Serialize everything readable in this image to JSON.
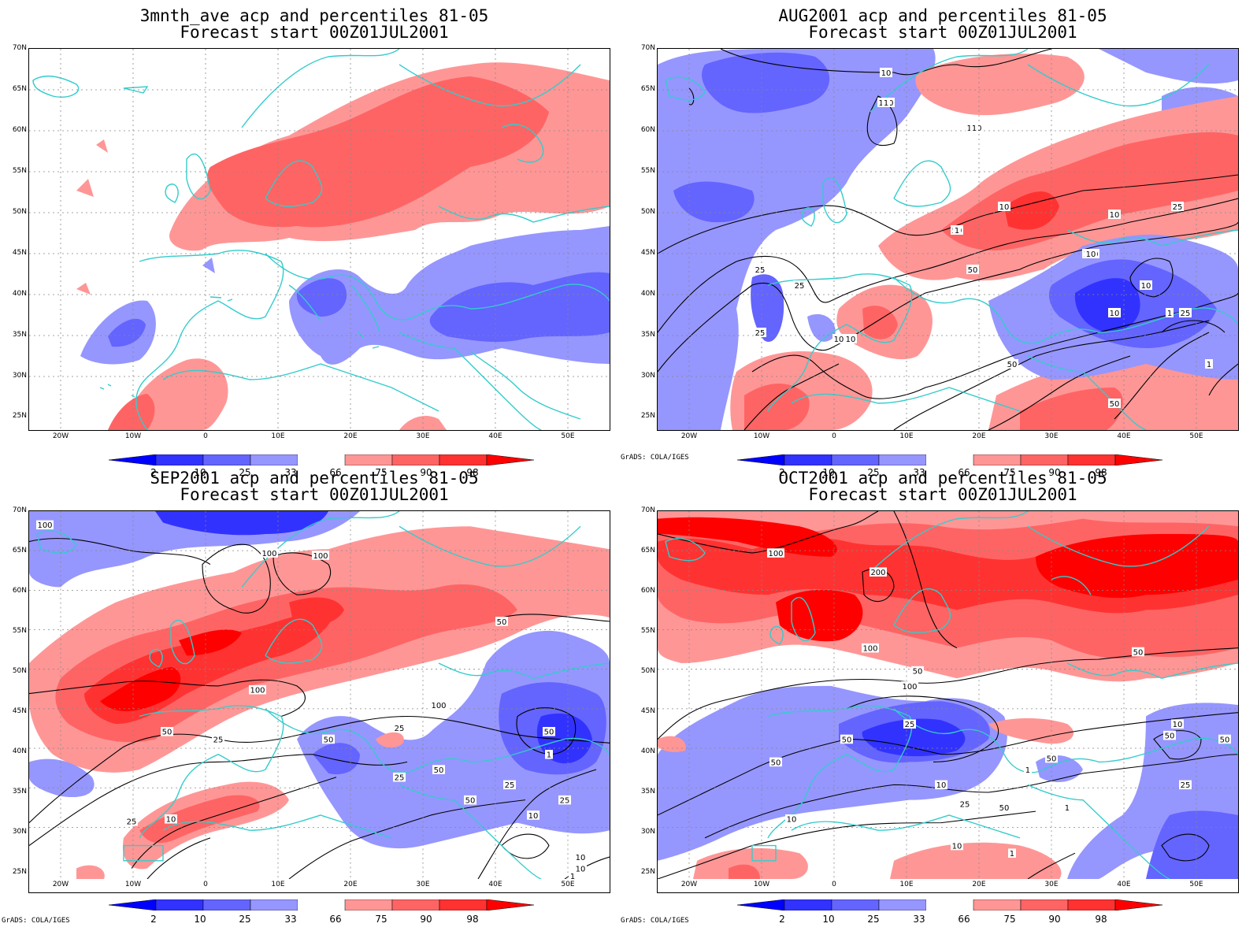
{
  "lat_labels": [
    "70N",
    "65N",
    "60N",
    "55N",
    "50N",
    "45N",
    "40N",
    "35N",
    "30N",
    "25N"
  ],
  "lon_labels": [
    "20W",
    "10W",
    "0",
    "10E",
    "20E",
    "30E",
    "40E",
    "50E"
  ],
  "colorbar": {
    "labels": [
      "2",
      "10",
      "25",
      "33",
      "66",
      "75",
      "90",
      "98"
    ],
    "colors": [
      "#0000ff",
      "#3232ff",
      "#6464ff",
      "#9696ff",
      "#ffffff",
      "#ff9696",
      "#ff6464",
      "#ff3232",
      "#ff0000"
    ]
  },
  "credit": "GrADS: COLA/IGES",
  "coast_color": "#33cccc",
  "panels": [
    {
      "id": "p1",
      "title_line1": "3mnth_ave acp and percentiles 81-05",
      "title_line2": "Forecast start 00Z01JUL2001",
      "show_credit": false,
      "contour_labels": []
    },
    {
      "id": "p2",
      "title_line1": "AUG2001 acp and percentiles 81-05",
      "title_line2": "Forecast start 00Z01JUL2001",
      "show_credit": true,
      "contour_labels": [
        "50",
        "100",
        "100",
        "50",
        "50",
        "100",
        "50",
        "25",
        "25",
        "10",
        "10",
        "50",
        "25",
        "10",
        "25",
        "10",
        "10",
        "1",
        "1",
        "10",
        "25",
        "50",
        "10",
        "1",
        "1",
        "10",
        "1",
        "10"
      ]
    },
    {
      "id": "p3",
      "title_line1": "SEP2001 acp and percentiles 81-05",
      "title_line2": "Forecast start 00Z01JUL2001",
      "show_credit": true,
      "contour_labels": [
        "100",
        "100",
        "100",
        "50",
        "100",
        "100",
        "50",
        "25",
        "50",
        "50",
        "25",
        "25",
        "50",
        "10",
        "50",
        "25",
        "25",
        "1",
        "10",
        "25",
        "10",
        "1",
        "10"
      ]
    },
    {
      "id": "p4",
      "title_line1": "OCT2001 acp and percentiles 81-05",
      "title_line2": "Forecast start 00Z01JUL2001",
      "show_credit": true,
      "contour_labels": [
        "100",
        "200",
        "100",
        "100",
        "50",
        "50",
        "25",
        "50",
        "50",
        "50",
        "25",
        "50",
        "10",
        "10",
        "10",
        "1",
        "50",
        "50",
        "25",
        "10",
        "1",
        "1"
      ]
    }
  ]
}
